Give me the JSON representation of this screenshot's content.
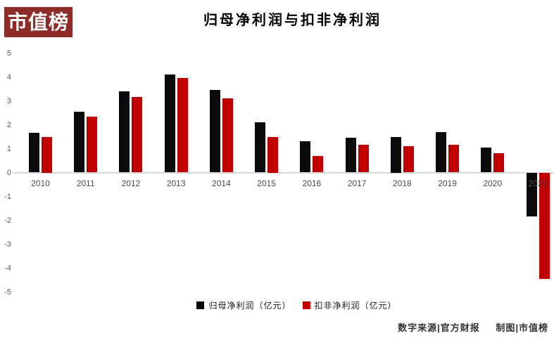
{
  "logo": {
    "text": "市值榜",
    "bg_color": "#8C2B28",
    "text_color": "#FFFFFF"
  },
  "title": "归母净利润与扣非净利润",
  "chart_data": {
    "type": "bar",
    "categories": [
      "2010",
      "2011",
      "2012",
      "2013",
      "2014",
      "2015",
      "2016",
      "2017",
      "2018",
      "2019",
      "2020",
      "2021"
    ],
    "series": [
      {
        "name": "归母净利润（亿元）",
        "color": "#0A0A0A",
        "values": [
          1.65,
          2.55,
          3.4,
          4.1,
          3.45,
          2.1,
          1.3,
          1.45,
          1.5,
          1.7,
          1.05,
          -1.85
        ]
      },
      {
        "name": "扣非净利润（亿元）",
        "color": "#C00000",
        "values": [
          1.5,
          2.35,
          3.15,
          3.95,
          3.1,
          1.5,
          0.7,
          1.15,
          1.1,
          1.15,
          0.8,
          -4.45
        ]
      }
    ],
    "title": "归母净利润与扣非净利润",
    "xlabel": "",
    "ylabel": "",
    "ylim": [
      -5,
      5
    ],
    "yticks": [
      5,
      4,
      3,
      2,
      1,
      0,
      -1,
      -2,
      -3,
      -4,
      -5
    ],
    "grid": false,
    "legend_position": "bottom",
    "axis_line_color": "#D9D9D9"
  },
  "footer": {
    "source": "数字来源|官方财报",
    "credit": "制图|市值榜"
  }
}
